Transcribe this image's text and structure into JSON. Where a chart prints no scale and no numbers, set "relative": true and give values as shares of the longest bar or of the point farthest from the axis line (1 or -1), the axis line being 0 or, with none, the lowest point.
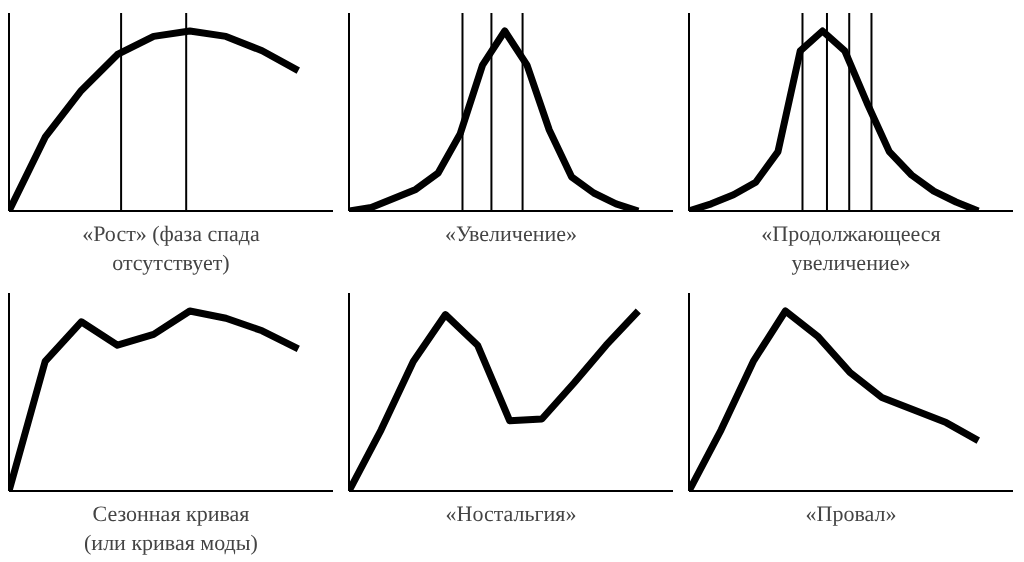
{
  "chart_data": [
    {
      "type": "line",
      "relative": true,
      "xlabel": "«Рост» (фаза спада\nотсутствует)",
      "categories": [
        null,
        null,
        null,
        null,
        null,
        null,
        null,
        null,
        null
      ],
      "series": [
        {
          "color": "#000000",
          "values": [
            0,
            0.41,
            0.67,
            0.87,
            0.97,
            1,
            0.97,
            0.89,
            0.78
          ]
        }
      ]
    },
    {
      "type": "line",
      "relative": true,
      "xlabel": "«Увеличение»",
      "categories": [
        null,
        null,
        null,
        null,
        null,
        null,
        null,
        null,
        null,
        null,
        null,
        null,
        null,
        null
      ],
      "series": [
        {
          "color": "#000000",
          "values": [
            0,
            0.02,
            0.07,
            0.12,
            0.21,
            0.43,
            0.81,
            1,
            0.81,
            0.45,
            0.19,
            0.1,
            0.04,
            0
          ]
        }
      ]
    },
    {
      "type": "line",
      "relative": true,
      "xlabel": "«Продолжающееся\nувеличение»",
      "categories": [
        null,
        null,
        null,
        null,
        null,
        null,
        null,
        null,
        null,
        null,
        null,
        null,
        null,
        null
      ],
      "series": [
        {
          "color": "#000000",
          "values": [
            0,
            0.04,
            0.09,
            0.16,
            0.33,
            0.89,
            1,
            0.89,
            0.6,
            0.33,
            0.2,
            0.11,
            0.05,
            0
          ]
        }
      ]
    },
    {
      "type": "line",
      "relative": true,
      "xlabel": "Сезонная кривая\n(или кривая моды)",
      "categories": [
        null,
        null,
        null,
        null,
        null,
        null,
        null,
        null,
        null
      ],
      "series": [
        {
          "color": "#000000",
          "values": [
            0,
            0.72,
            0.94,
            0.81,
            0.87,
            1,
            0.96,
            0.89,
            0.79
          ]
        }
      ]
    },
    {
      "type": "line",
      "relative": true,
      "xlabel": "«Ностальгия»",
      "categories": [
        null,
        null,
        null,
        null,
        null,
        null,
        null,
        null,
        null,
        null
      ],
      "series": [
        {
          "color": "#000000",
          "values": [
            0,
            0.34,
            0.72,
            0.98,
            0.81,
            0.39,
            0.4,
            0.6,
            0.81,
            1
          ]
        }
      ]
    },
    {
      "type": "line",
      "relative": true,
      "xlabel": "«Провал»",
      "categories": [
        null,
        null,
        null,
        null,
        null,
        null,
        null,
        null,
        null,
        null
      ],
      "series": [
        {
          "color": "#000000",
          "values": [
            0,
            0.34,
            0.72,
            1,
            0.86,
            0.66,
            0.52,
            0.45,
            0.38,
            0.28
          ]
        }
      ]
    }
  ]
}
